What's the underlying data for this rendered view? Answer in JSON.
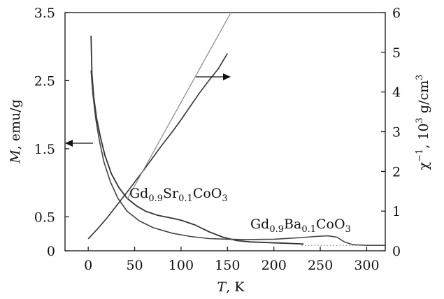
{
  "chart_data": {
    "type": "line",
    "title": "",
    "x_axis": {
      "label_italic": "T",
      "label_rest": ", K",
      "range": [
        -25,
        320
      ],
      "ticks": [
        0,
        50,
        100,
        150,
        200,
        250,
        300
      ],
      "tick_labels": [
        "0",
        "50",
        "100",
        "150",
        "200",
        "250",
        "300"
      ]
    },
    "y_left": {
      "label_italic": "M",
      "label_rest": ", emu/g",
      "range": [
        0,
        3.5
      ],
      "ticks": [
        0,
        0.5,
        1.5,
        2.5,
        3.5
      ],
      "tick_labels": [
        "0",
        "0.5",
        "1.5",
        "2.5",
        "3.5"
      ]
    },
    "y_right": {
      "label_base": "χ",
      "label_sup1": "−1",
      "label_mid": ", 10",
      "label_sup2": "3",
      "label_unit": " g/cm",
      "label_sup3": "3",
      "range": [
        0,
        6
      ],
      "ticks": [
        0,
        1,
        2,
        3,
        4,
        5,
        6
      ],
      "tick_labels": [
        "0",
        "1",
        "2",
        "3",
        "4",
        "5",
        "6"
      ]
    },
    "series": [
      {
        "axis": "left",
        "points": [
          [
            3,
            3.16
          ],
          [
            4,
            2.6
          ],
          [
            6,
            2.25
          ],
          [
            9,
            1.95
          ],
          [
            13,
            1.68
          ],
          [
            18,
            1.4
          ],
          [
            25,
            1.13
          ],
          [
            33,
            0.93
          ],
          [
            42,
            0.77
          ],
          [
            52,
            0.66
          ],
          [
            62,
            0.58
          ],
          [
            75,
            0.52
          ],
          [
            90,
            0.48
          ],
          [
            100,
            0.45
          ],
          [
            115,
            0.38
          ],
          [
            130,
            0.28
          ],
          [
            145,
            0.2
          ],
          [
            160,
            0.15
          ],
          [
            175,
            0.13
          ],
          [
            195,
            0.12
          ],
          [
            215,
            0.11
          ],
          [
            232,
            0.1
          ]
        ]
      },
      {
        "axis": "left",
        "points": [
          [
            3,
            2.65
          ],
          [
            5,
            2.3
          ],
          [
            8,
            1.95
          ],
          [
            12,
            1.62
          ],
          [
            17,
            1.3
          ],
          [
            24,
            1.01
          ],
          [
            32,
            0.77
          ],
          [
            42,
            0.58
          ],
          [
            55,
            0.44
          ],
          [
            70,
            0.34
          ],
          [
            90,
            0.26
          ],
          [
            110,
            0.21
          ],
          [
            130,
            0.18
          ],
          [
            150,
            0.17
          ],
          [
            170,
            0.165
          ],
          [
            200,
            0.17
          ],
          [
            225,
            0.19
          ],
          [
            245,
            0.21
          ],
          [
            258,
            0.22
          ],
          [
            268,
            0.2
          ],
          [
            276,
            0.13
          ],
          [
            285,
            0.09
          ],
          [
            300,
            0.08
          ],
          [
            320,
            0.08
          ]
        ]
      },
      {
        "axis": "right",
        "points": [
          [
            0,
            0.3
          ],
          [
            10,
            0.55
          ],
          [
            20,
            0.82
          ],
          [
            30,
            1.12
          ],
          [
            40,
            1.42
          ],
          [
            50,
            1.73
          ],
          [
            60,
            2.04
          ],
          [
            70,
            2.36
          ],
          [
            80,
            2.68
          ],
          [
            90,
            2.98
          ],
          [
            100,
            3.3
          ],
          [
            110,
            3.64
          ],
          [
            120,
            3.98
          ],
          [
            130,
            4.29
          ],
          [
            140,
            4.58
          ],
          [
            150,
            4.97
          ]
        ]
      },
      {
        "axis": "right",
        "points": [
          [
            42,
            1.3
          ],
          [
            153,
            5.97
          ]
        ]
      }
    ],
    "annotations": [
      {
        "base": "Gd",
        "s1": "0.9",
        "mid": "Sr",
        "s2": "0.1",
        "end": "CoO",
        "s3": "3"
      },
      {
        "base": "Gd",
        "s1": "0.9",
        "mid": "Ba",
        "s2": "0.1",
        "end": "CoO",
        "s3": "3"
      }
    ],
    "arrows": [
      {
        "direction": "left"
      },
      {
        "direction": "right"
      }
    ],
    "grid": false,
    "legend": "none"
  }
}
